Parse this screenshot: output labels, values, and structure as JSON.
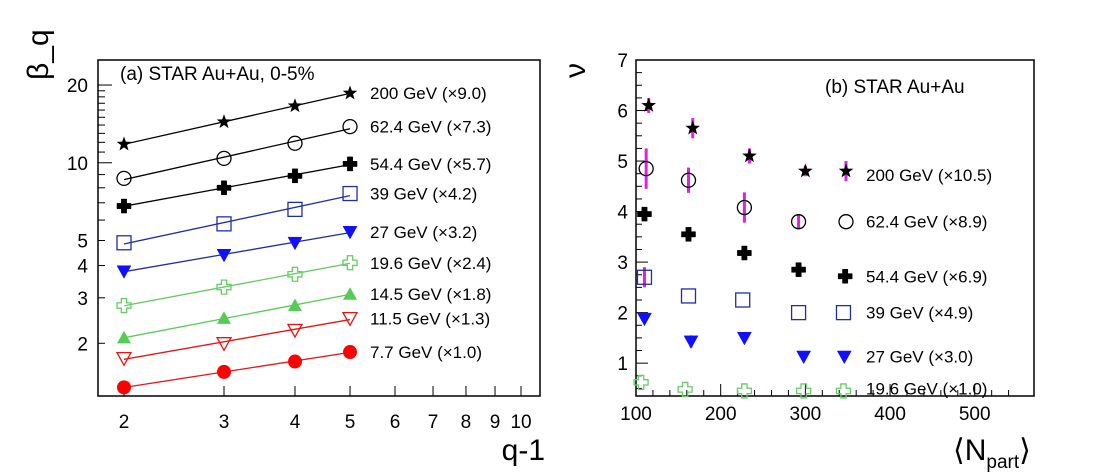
{
  "chart_data": [
    {
      "type": "scatter",
      "panel_label": "(a) STAR Au+Au, 0-5%",
      "ylabel": "β_q",
      "xlabel": "q-1",
      "yscale": "log",
      "xscale": "log",
      "xlim": [
        1.8,
        10.8
      ],
      "ylim": [
        1.25,
        25
      ],
      "x_ticks": [
        2,
        3,
        4,
        5,
        6,
        7,
        8,
        9,
        10
      ],
      "y_ticks": [
        2,
        3,
        4,
        5,
        10,
        20
      ],
      "grid": false,
      "legend": "right-side labels",
      "series": [
        {
          "name": "200 GeV (×9.0)",
          "marker": "star-filled",
          "color": "#000000",
          "fit_color": "#000000",
          "x": [
            2,
            3,
            4,
            5
          ],
          "y": [
            11.8,
            14.4,
            16.6,
            18.6
          ]
        },
        {
          "name": "62.4 GeV (×7.3)",
          "marker": "circle-open",
          "color": "#000000",
          "fit_color": "#000000",
          "x": [
            2,
            3,
            4,
            5
          ],
          "y": [
            8.7,
            10.4,
            11.9,
            13.8
          ]
        },
        {
          "name": "54.4 GeV (×5.7)",
          "marker": "cross-filled",
          "color": "#000000",
          "fit_color": "#000000",
          "x": [
            2,
            3,
            4,
            5
          ],
          "y": [
            6.8,
            8.0,
            8.9,
            9.9
          ]
        },
        {
          "name": "39 GeV (×4.2)",
          "marker": "square-open",
          "color": "#1f2fa8",
          "fit_color": "#1f2fa8",
          "x": [
            2,
            3,
            4,
            5
          ],
          "y": [
            4.9,
            5.8,
            6.6,
            7.6
          ]
        },
        {
          "name": "27 GeV (×3.2)",
          "marker": "triangle-down-filled",
          "color": "#1010ff",
          "fit_color": "#1f2fa8",
          "x": [
            2,
            3,
            4,
            5
          ],
          "y": [
            3.8,
            4.4,
            4.9,
            5.4
          ]
        },
        {
          "name": "19.6 GeV (×2.4)",
          "marker": "cross-open",
          "color": "#66cc66",
          "fit_color": "#66cc66",
          "x": [
            2,
            3,
            4,
            5
          ],
          "y": [
            2.8,
            3.3,
            3.7,
            4.1
          ]
        },
        {
          "name": "14.5 GeV (×1.8)",
          "marker": "triangle-up-filled",
          "color": "#55cc55",
          "fit_color": "#55cc55",
          "x": [
            2,
            3,
            4,
            5
          ],
          "y": [
            2.1,
            2.5,
            2.8,
            3.1
          ]
        },
        {
          "name": "11.5 GeV (×1.3)",
          "marker": "triangle-down-open",
          "color": "#ee1111",
          "fit_color": "#ee1111",
          "x": [
            2,
            3,
            4,
            5
          ],
          "y": [
            1.75,
            2.0,
            2.25,
            2.5
          ]
        },
        {
          "name": "7.7 GeV (×1.0)",
          "marker": "circle-filled",
          "color": "#ff0000",
          "fit_color": "#ee1111",
          "x": [
            2,
            3,
            4,
            5
          ],
          "y": [
            1.35,
            1.55,
            1.7,
            1.85
          ]
        }
      ]
    },
    {
      "type": "scatter",
      "panel_label": "(b) STAR Au+Au",
      "ylabel": "ν",
      "xlabel": "⟨N",
      "xlabel_sub": "part",
      "xlabel_close": "⟩",
      "xlim": [
        100,
        570
      ],
      "ylim": [
        0.35,
        7
      ],
      "x_ticks": [
        100,
        200,
        300,
        400,
        500
      ],
      "y_ticks": [
        1,
        2,
        3,
        4,
        5,
        6,
        7
      ],
      "grid": false,
      "legend": "right-side labels",
      "error_bar_color": "#e020e0",
      "series": [
        {
          "name": "200 GeV (×10.5)",
          "marker": "star-filled",
          "color": "#000000",
          "legend_y": 4.72,
          "x": [
            115,
            167,
            234,
            300,
            348
          ],
          "y": [
            6.1,
            5.65,
            5.1,
            4.8,
            4.8
          ],
          "err": [
            0.15,
            0.2,
            0.15,
            0.1,
            0.2
          ]
        },
        {
          "name": "62.4 GeV (×8.9)",
          "marker": "circle-open",
          "color": "#000000",
          "legend_y": 3.8,
          "x": [
            112,
            162,
            228,
            292,
            348
          ],
          "y": [
            4.85,
            4.62,
            4.08,
            3.8,
            3.8
          ],
          "err": [
            0.4,
            0.25,
            0.3,
            0.15,
            0
          ]
        },
        {
          "name": "54.4 GeV (×6.9)",
          "marker": "cross-filled",
          "color": "#000000",
          "legend_y": 2.72,
          "x": [
            110,
            162,
            228,
            292,
            347
          ],
          "y": [
            3.95,
            3.55,
            3.18,
            2.85,
            2.72
          ],
          "err": [
            0.1,
            0.1,
            0.1,
            0.1,
            0
          ]
        },
        {
          "name": "39 GeV (×4.9)",
          "marker": "square-open",
          "color": "#1f2fa8",
          "legend_y": 2.0,
          "x": [
            110,
            162,
            226,
            292,
            345
          ],
          "y": [
            2.7,
            2.33,
            2.25,
            2.0,
            2.0
          ],
          "err": [
            0.2,
            0,
            0,
            0,
            0
          ]
        },
        {
          "name": "27 GeV (×3.0)",
          "marker": "triangle-down-filled",
          "color": "#1010ff",
          "legend_y": 1.13,
          "x": [
            110,
            165,
            228,
            298,
            346
          ],
          "y": [
            1.88,
            1.43,
            1.5,
            1.13,
            1.13
          ],
          "err": [
            0,
            0.12,
            0,
            0,
            0
          ]
        },
        {
          "name": "19.6 GeV (×1.0)",
          "marker": "cross-open",
          "color": "#66cc66",
          "legend_y": 0.5,
          "x": [
            106,
            158,
            228,
            298,
            345
          ],
          "y": [
            0.62,
            0.48,
            0.45,
            0.45,
            0.45
          ],
          "err": [
            0,
            0,
            0,
            0,
            0
          ]
        }
      ]
    }
  ]
}
